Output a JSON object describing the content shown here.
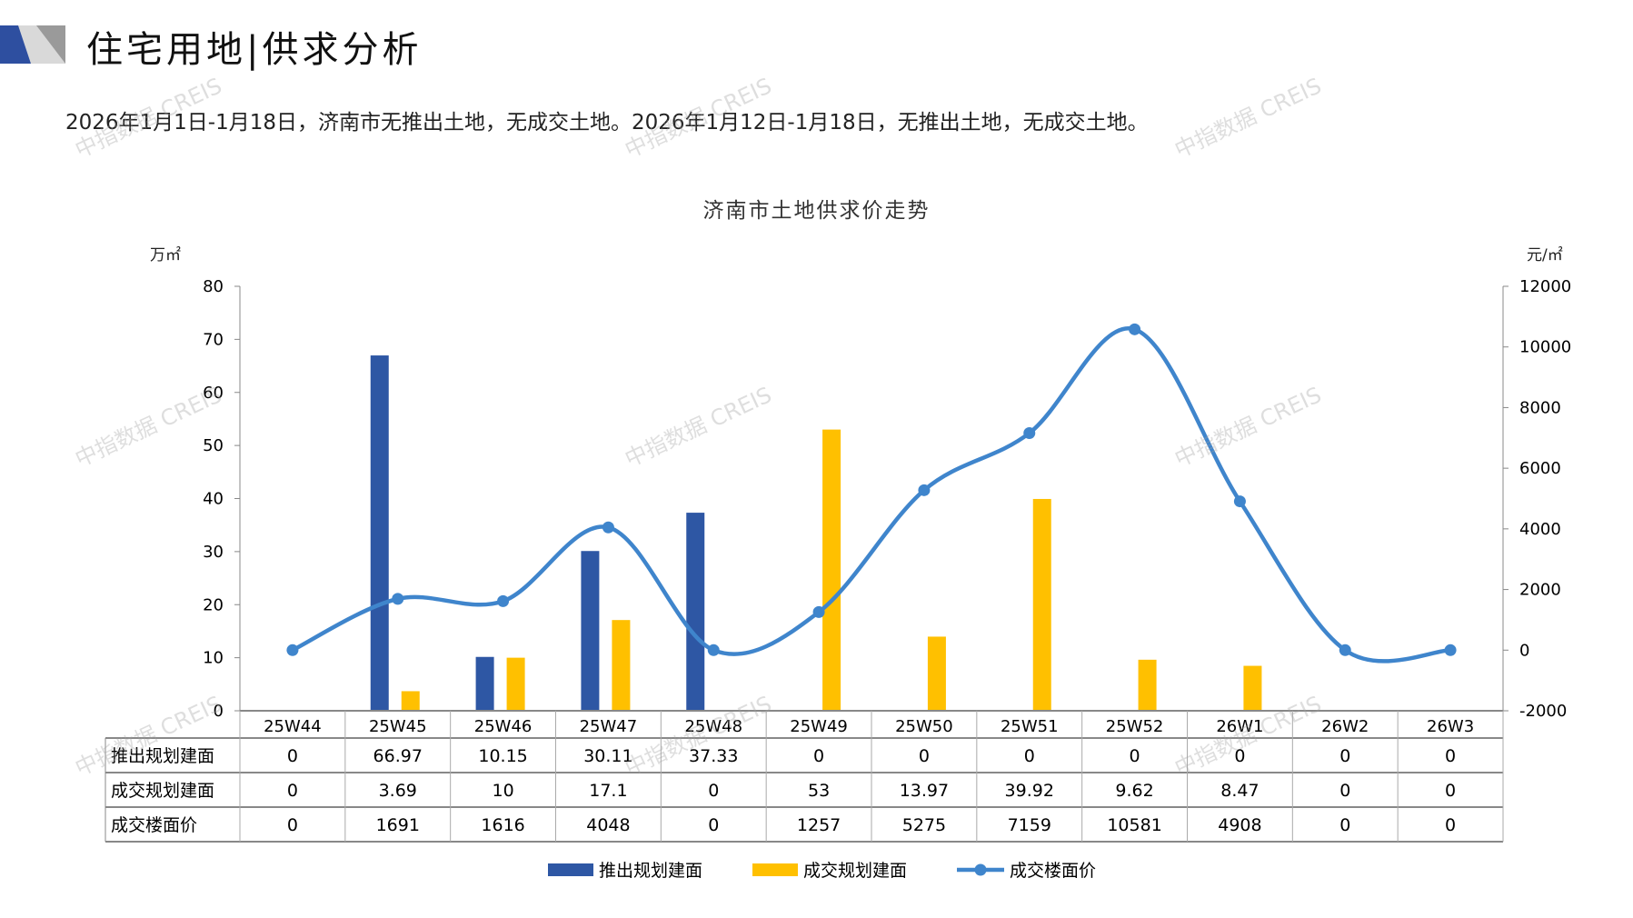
{
  "header": {
    "title": "住宅用地|供求分析",
    "summary": "2026年1月1日-1月18日，济南市无推出土地，无成交土地。2026年1月12日-1月18日，无推出土地，无成交土地。",
    "watermark": "中指数据 CREIS"
  },
  "colors": {
    "supply": "#2E57A4",
    "deal": "#FFC000",
    "price": "#3F85CC",
    "brand_blue": "#2E4FA0",
    "brand_gray": "#9A9A9A"
  },
  "chart_data": {
    "type": "bar+line",
    "title": "济南市土地供求价走势",
    "ylabel_left": "万㎡",
    "ylabel_right": "元/㎡",
    "ylim_left": [
      0,
      80
    ],
    "yticks_left": [
      "0",
      "10",
      "20",
      "30",
      "40",
      "50",
      "60",
      "70",
      "80"
    ],
    "ylim_right": [
      -2000,
      12000
    ],
    "yticks_right": [
      "-2000",
      "0",
      "2000",
      "4000",
      "6000",
      "8000",
      "10000",
      "12000"
    ],
    "categories": [
      "25W44",
      "25W45",
      "25W46",
      "25W47",
      "25W48",
      "25W49",
      "25W50",
      "25W51",
      "25W52",
      "26W1",
      "26W2",
      "26W3"
    ],
    "series": [
      {
        "name": "推出规划建面",
        "type": "bar",
        "axis": "left",
        "values": [
          0,
          66.97,
          10.15,
          30.11,
          37.33,
          0,
          0,
          0,
          0,
          0,
          0,
          0
        ],
        "labels": [
          "0",
          "66.97",
          "10.15",
          "30.11",
          "37.33",
          "0",
          "0",
          "0",
          "0",
          "0",
          "0",
          "0"
        ]
      },
      {
        "name": "成交规划建面",
        "type": "bar",
        "axis": "left",
        "values": [
          0,
          3.69,
          10,
          17.1,
          0,
          53,
          13.97,
          39.92,
          9.62,
          8.47,
          0,
          0
        ],
        "labels": [
          "0",
          "3.69",
          "10",
          "17.1",
          "0",
          "53",
          "13.97",
          "39.92",
          "9.62",
          "8.47",
          "0",
          "0"
        ]
      },
      {
        "name": "成交楼面价",
        "type": "line",
        "axis": "right",
        "values": [
          0,
          1691,
          1616,
          4048,
          0,
          1257,
          5275,
          7159,
          10581,
          4908,
          0,
          0
        ],
        "labels": [
          "0",
          "1691",
          "1616",
          "4048",
          "0",
          "1257",
          "5275",
          "7159",
          "10581",
          "4908",
          "0",
          "0"
        ]
      }
    ],
    "legend": "bottom"
  }
}
